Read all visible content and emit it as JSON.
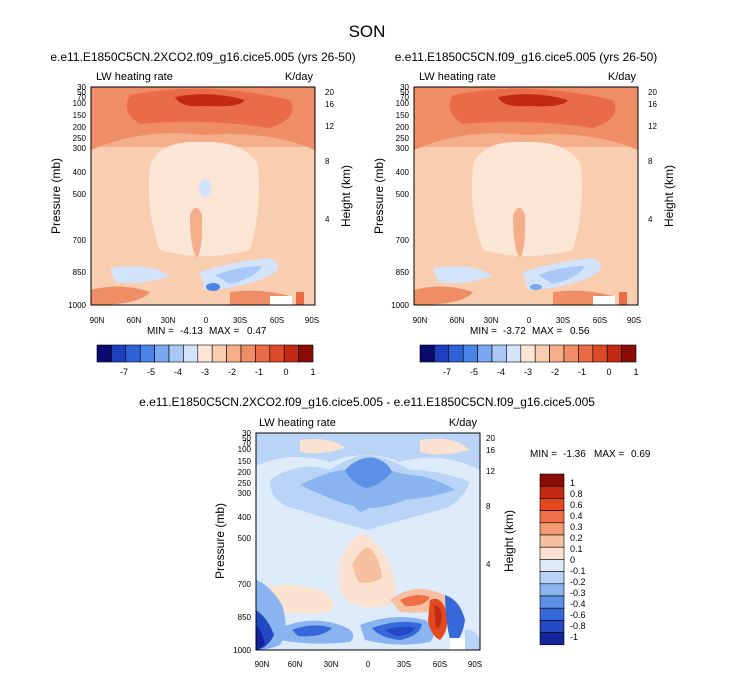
{
  "figure": {
    "title": "SON"
  },
  "chart_data": [
    {
      "type": "heatmap",
      "title": "e.e11.E1850C5CN.2XCO2.f09_g16.cice5.005 (yrs 26-50)",
      "left_label": "LW heating rate",
      "right_label": "K/day",
      "xlabel": "",
      "ylabel": "Pressure (mb)",
      "y2label": "Height (km)",
      "x_ticks": [
        "90N",
        "60N",
        "30N",
        "0",
        "30S",
        "60S",
        "90S"
      ],
      "y_ticks": [
        "30",
        "50",
        "70",
        "100",
        "150",
        "200",
        "250",
        "300",
        "400",
        "500",
        "700",
        "850",
        "1000"
      ],
      "y2_ticks": [
        "20",
        "16",
        "12",
        "8",
        "4"
      ],
      "min_label": "MIN =",
      "min": "-4.13",
      "max_label": "MAX =",
      "max": "0.47",
      "colorbar_labels": [
        "-7",
        "-5",
        "-4",
        "-3",
        "-2",
        "-1",
        "0",
        "1"
      ]
    },
    {
      "type": "heatmap",
      "title": "e.e11.E1850C5CN.f09_g16.cice5.005 (yrs 26-50)",
      "left_label": "LW heating rate",
      "right_label": "K/day",
      "xlabel": "",
      "ylabel": "Pressure (mb)",
      "y2label": "Height (km)",
      "x_ticks": [
        "90N",
        "60N",
        "30N",
        "0",
        "30S",
        "60S",
        "90S"
      ],
      "y_ticks": [
        "30",
        "50",
        "70",
        "100",
        "150",
        "200",
        "250",
        "300",
        "400",
        "500",
        "700",
        "850",
        "1000"
      ],
      "y2_ticks": [
        "20",
        "16",
        "12",
        "8",
        "4"
      ],
      "min_label": "MIN =",
      "min": "-3.72",
      "max_label": "MAX =",
      "max": "0.56",
      "colorbar_labels": [
        "-7",
        "-5",
        "-4",
        "-3",
        "-2",
        "-1",
        "0",
        "1"
      ]
    },
    {
      "type": "heatmap",
      "title": "e.e11.E1850C5CN.2XCO2.f09_g16.cice5.005 - e.e11.E1850C5CN.f09_g16.cice5.005",
      "left_label": "LW heating rate",
      "right_label": "K/day",
      "xlabel": "",
      "ylabel": "Pressure (mb)",
      "y2label": "Height (km)",
      "x_ticks": [
        "90N",
        "60N",
        "30N",
        "0",
        "30S",
        "60S",
        "90S"
      ],
      "y_ticks": [
        "30",
        "50",
        "70",
        "100",
        "150",
        "200",
        "250",
        "300",
        "400",
        "500",
        "700",
        "850",
        "1000"
      ],
      "y2_ticks": [
        "20",
        "16",
        "12",
        "8",
        "4"
      ],
      "min_label": "MIN =",
      "min": "-1.36",
      "max_label": "MAX =",
      "max": "0.69",
      "colorbar_labels": [
        "1",
        "0.8",
        "0.6",
        "0.4",
        "0.3",
        "0.2",
        "0.1",
        "0",
        "-0.1",
        "-0.2",
        "-0.3",
        "-0.4",
        "-0.6",
        "-0.8",
        "-1"
      ]
    }
  ],
  "colors": {
    "scale_blue_to_red": [
      "#0a0a6e",
      "#1f3fbf",
      "#2f62d9",
      "#4a84e6",
      "#7aa7ef",
      "#a9c8f5",
      "#d2e3fb",
      "#fbe6d6",
      "#f9cdb0",
      "#f4ae8a",
      "#ef8d67",
      "#e96b48",
      "#dd4a2a",
      "#c22a14",
      "#8a0c05"
    ],
    "scale_diff_top_to_bottom": [
      "#8a0c05",
      "#c22a14",
      "#e3491f",
      "#ef7048",
      "#f39a75",
      "#f7c0a0",
      "#fbe1cf",
      "#ddebfb",
      "#b9d4f7",
      "#8ab4f0",
      "#5c8fe6",
      "#3768d9",
      "#2248c4",
      "#12259c"
    ]
  }
}
